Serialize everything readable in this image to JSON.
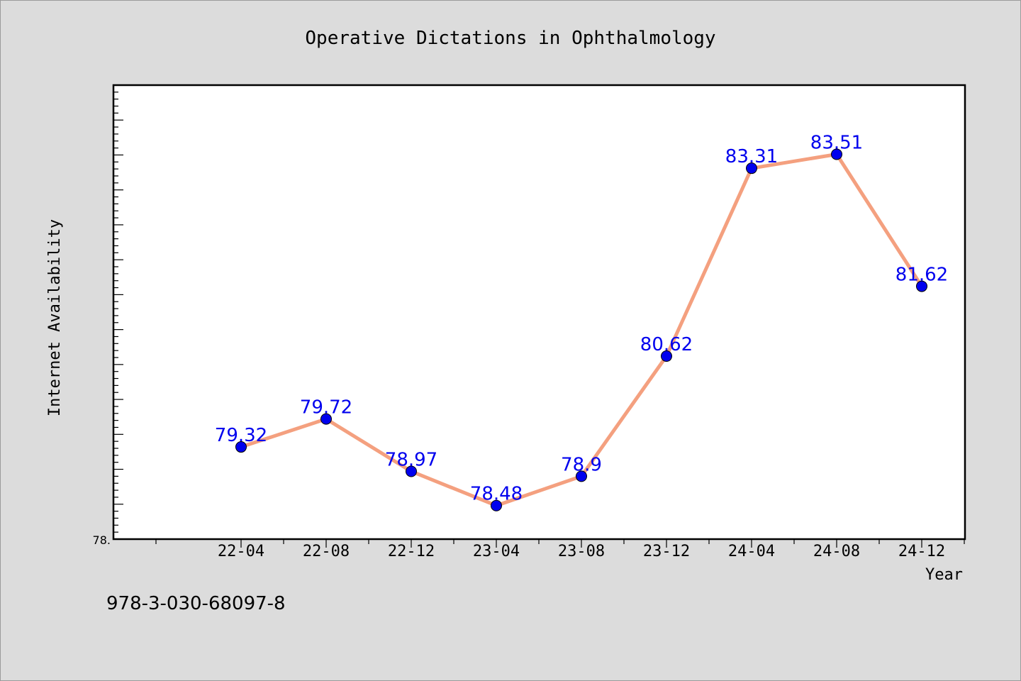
{
  "chart_data": {
    "type": "line",
    "title": "Operative Dictations in Ophthalmology",
    "xlabel": "Year",
    "ylabel": "Internet Availability",
    "categories": [
      "22-04",
      "22-08",
      "22-12",
      "23-04",
      "23-08",
      "23-12",
      "24-04",
      "24-08",
      "24-12"
    ],
    "values": [
      79.32,
      79.72,
      78.97,
      78.48,
      78.9,
      80.62,
      83.31,
      83.51,
      81.62
    ],
    "data_labels": [
      "79.32",
      "79.72",
      "78.97",
      "78.48",
      "78.9",
      "80.62",
      "83.31",
      "83.51",
      "81.62"
    ],
    "ylim": [
      78.0,
      84.5
    ],
    "y_tick_labels": [
      "78."
    ],
    "grid": false,
    "legend": "none",
    "colors": {
      "line": "#f4a07f",
      "marker": "#0000ee",
      "data_label": "#0000ee",
      "plot_background": "#ffffff",
      "page_background": "#dcdcdc"
    }
  },
  "footer_text": "978-3-030-68097-8"
}
